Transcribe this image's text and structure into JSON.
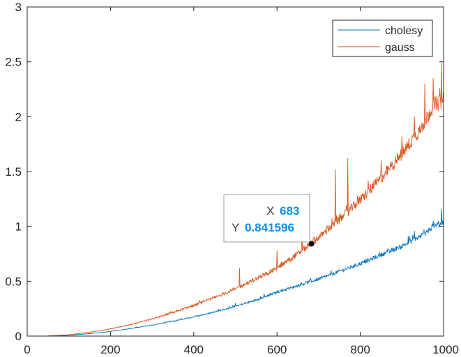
{
  "chart_data": {
    "type": "line",
    "xlim": [
      0,
      1000
    ],
    "ylim": [
      0,
      3
    ],
    "x_ticks": [
      0,
      200,
      400,
      600,
      800,
      1000
    ],
    "x_tick_labels": [
      "0",
      "200",
      "400",
      "600",
      "800",
      "1000"
    ],
    "y_ticks": [
      0,
      0.5,
      1,
      1.5,
      2,
      2.5,
      3
    ],
    "y_tick_labels": [
      "0",
      "0.5",
      "1",
      "1.5",
      "2",
      "2.5",
      "3"
    ],
    "grid": false,
    "legend_position": "top-right",
    "series": [
      {
        "name": "cholesy",
        "color": "#0072BD",
        "x": [
          50,
          100,
          150,
          200,
          250,
          300,
          350,
          400,
          450,
          500,
          550,
          600,
          650,
          700,
          750,
          800,
          850,
          900,
          950,
          975,
          1000
        ],
        "y": [
          0.001,
          0.008,
          0.022,
          0.042,
          0.07,
          0.1,
          0.135,
          0.175,
          0.22,
          0.27,
          0.33,
          0.4,
          0.46,
          0.52,
          0.59,
          0.66,
          0.74,
          0.82,
          0.92,
          1.0,
          1.04
        ],
        "spikes": [
          [
            500,
            0.3
          ],
          [
            683,
            0.49
          ],
          [
            730,
            0.6
          ],
          [
            770,
            0.63
          ],
          [
            820,
            0.7
          ],
          [
            930,
            0.96
          ],
          [
            995,
            1.16
          ]
        ]
      },
      {
        "name": "gauss",
        "color": "#D95319",
        "x": [
          50,
          100,
          150,
          200,
          250,
          300,
          350,
          400,
          450,
          500,
          550,
          600,
          650,
          700,
          750,
          800,
          850,
          900,
          950,
          975,
          1000
        ],
        "y": [
          0.002,
          0.012,
          0.035,
          0.065,
          0.105,
          0.155,
          0.215,
          0.28,
          0.35,
          0.43,
          0.52,
          0.62,
          0.75,
          0.9,
          1.06,
          1.24,
          1.44,
          1.66,
          1.92,
          2.1,
          2.15
        ],
        "spikes": [
          [
            510,
            0.62
          ],
          [
            600,
            0.78
          ],
          [
            660,
            0.95
          ],
          [
            683,
            0.841596
          ],
          [
            740,
            1.52
          ],
          [
            770,
            1.62
          ],
          [
            850,
            1.6
          ],
          [
            900,
            1.82
          ],
          [
            930,
            2.0
          ],
          [
            955,
            2.3
          ],
          [
            975,
            2.35
          ],
          [
            995,
            2.5
          ]
        ]
      }
    ],
    "datatip": {
      "x_key": "X",
      "y_key": "Y",
      "x": 683,
      "y": 0.841596,
      "x_text": "683",
      "y_text": "0.841596"
    }
  }
}
